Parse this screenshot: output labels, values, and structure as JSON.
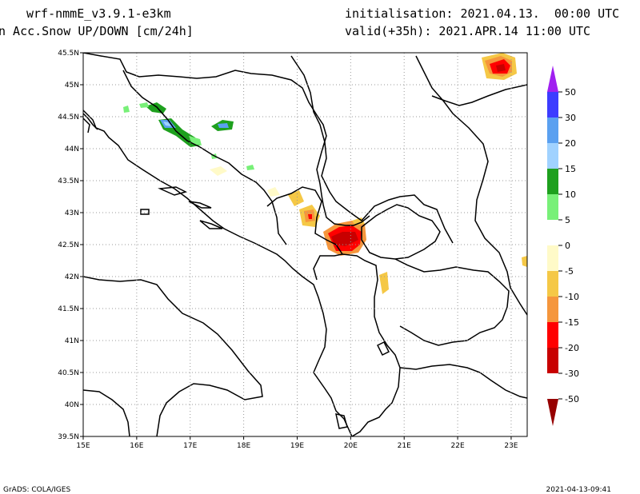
{
  "header": {
    "model": "wrf-nmmE_v3.9.1-e3km",
    "variable": "n Acc.Snow UP/DOWN [cm/24h]",
    "initialisation": "initialisation: 2021.04.13.  00:00 UTC",
    "valid": "valid(+35h): 2021.APR.14 11:00 UTC"
  },
  "footer": {
    "left": "GrADS: COLA/IGES",
    "right": "2021-04-13-09:41"
  },
  "map": {
    "lon_range": [
      15,
      23.3
    ],
    "lat_range": [
      39.5,
      45.5
    ],
    "lon_ticks": [
      "15E",
      "16E",
      "17E",
      "18E",
      "19E",
      "20E",
      "21E",
      "22E",
      "23E"
    ],
    "lat_ticks": [
      "39.5N",
      "40N",
      "40.5N",
      "41N",
      "41.5N",
      "42N",
      "42.5N",
      "43N",
      "43.5N",
      "44N",
      "44.5N",
      "45N",
      "45.5N"
    ],
    "gridlines": "dotted"
  },
  "colorbar": {
    "labels": [
      "50",
      "30",
      "20",
      "15",
      "10",
      "5",
      "0",
      "-5",
      "-10",
      "-15",
      "-20",
      "-30",
      "-50"
    ],
    "colors": [
      "#a020f0",
      "#3c3cff",
      "#5aa0f0",
      "#a0d2ff",
      "#1ea01e",
      "#78f078",
      "#ffffff",
      "#fffac8",
      "#f5c846",
      "#f5963c",
      "#ff0000",
      "#c80000",
      "#960000"
    ]
  }
}
